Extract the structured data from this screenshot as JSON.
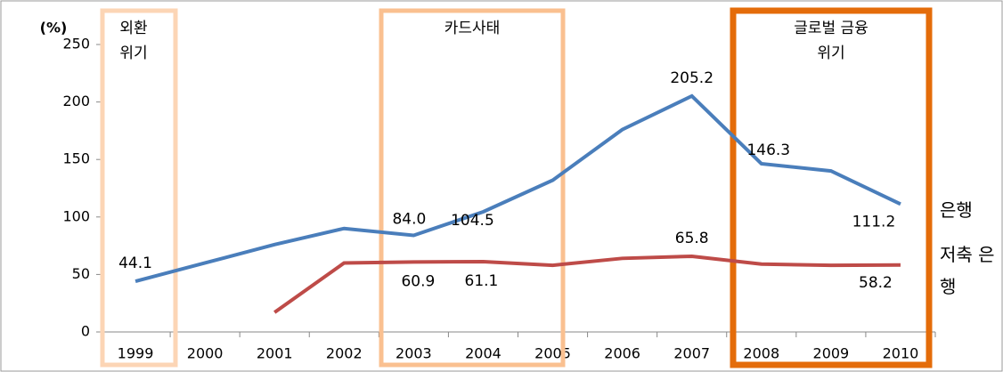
{
  "chart_data": {
    "type": "line",
    "y_label": "(%)",
    "categories": [
      "1999",
      "2000",
      "2001",
      "2002",
      "2003",
      "2004",
      "2005",
      "2006",
      "2007",
      "2008",
      "2009",
      "2010"
    ],
    "series": [
      {
        "name": "은행",
        "color": "#4a7ebb",
        "values": [
          44.1,
          60,
          76,
          90,
          84.0,
          104.5,
          132,
          176,
          205.2,
          146.3,
          140,
          111.2
        ],
        "value_labels": [
          "44.1",
          null,
          null,
          null,
          "84.0",
          "104.5",
          null,
          null,
          "205.2",
          "146.3",
          null,
          "111.2"
        ]
      },
      {
        "name": "저축 은행",
        "color": "#be4b48",
        "values": [
          null,
          null,
          17,
          60,
          60.9,
          61.1,
          58,
          64,
          65.8,
          59,
          58,
          58.2
        ],
        "value_labels": [
          null,
          null,
          null,
          null,
          "60.9",
          "61.1",
          null,
          null,
          "65.8",
          null,
          null,
          "58.2"
        ]
      }
    ],
    "annotations": [
      {
        "label": "외환 위기",
        "color": "#fcd5b5"
      },
      {
        "label": "카드사태",
        "color": "#fac090"
      },
      {
        "label": "글로벌 금융위기",
        "color": "#e46c0a"
      }
    ],
    "ylim": [
      0,
      250
    ],
    "yticks": [
      0,
      50,
      100,
      150,
      200,
      250
    ]
  }
}
